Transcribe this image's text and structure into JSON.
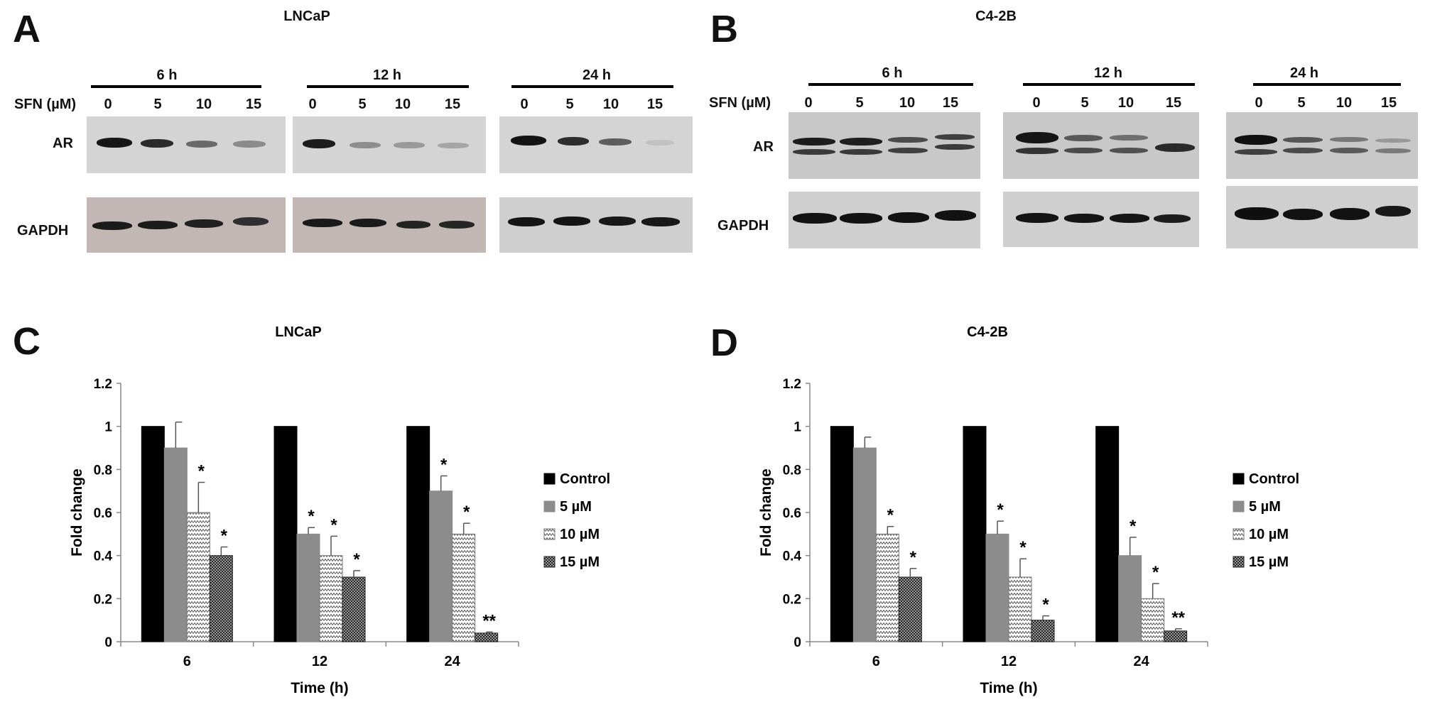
{
  "panels": {
    "A": {
      "letter": "A",
      "cell_line": "LNCaP"
    },
    "B": {
      "letter": "B",
      "cell_line": "C4-2B"
    },
    "C": {
      "letter": "C",
      "cell_line": "LNCaP"
    },
    "D": {
      "letter": "D",
      "cell_line": "C4-2B"
    }
  },
  "blots": {
    "sfn_label": "SFN (µM)",
    "time_points": [
      "6 h",
      "12 h",
      "24 h"
    ],
    "concentrations": [
      "0",
      "5",
      "10",
      "15"
    ],
    "rows": [
      "AR",
      "GAPDH"
    ]
  },
  "chart_data": [
    {
      "type": "bar",
      "title": "LNCaP",
      "xlabel": "Time (h)",
      "ylabel": "Fold change",
      "ylim": [
        0,
        1.2
      ],
      "yticks": [
        "0",
        "0.2",
        "0.4",
        "0.6",
        "0.8",
        "1",
        "1.2"
      ],
      "categories": [
        "6",
        "12",
        "24"
      ],
      "legend_position": "right",
      "series": [
        {
          "name": "Control",
          "values": [
            1,
            1,
            1
          ],
          "errors": [
            0,
            0,
            0
          ],
          "sig": [
            "",
            "",
            ""
          ]
        },
        {
          "name": "5 µM",
          "values": [
            0.9,
            0.5,
            0.7
          ],
          "errors": [
            0.12,
            0.03,
            0.07
          ],
          "sig": [
            "",
            "*",
            "*"
          ]
        },
        {
          "name": "10 µM",
          "values": [
            0.6,
            0.4,
            0.5
          ],
          "errors": [
            0.14,
            0.09,
            0.05
          ],
          "sig": [
            "*",
            "*",
            "*"
          ]
        },
        {
          "name": "15 µM",
          "values": [
            0.4,
            0.3,
            0.04
          ],
          "errors": [
            0.04,
            0.03,
            0.005
          ],
          "sig": [
            "*",
            "*",
            "**"
          ]
        }
      ]
    },
    {
      "type": "bar",
      "title": "C4-2B",
      "xlabel": "Time (h)",
      "ylabel": "Fold change",
      "ylim": [
        0,
        1.2
      ],
      "yticks": [
        "0",
        "0.2",
        "0.4",
        "0.6",
        "0.8",
        "1",
        "1.2"
      ],
      "categories": [
        "6",
        "12",
        "24"
      ],
      "legend_position": "right",
      "series": [
        {
          "name": "Control",
          "values": [
            1,
            1,
            1
          ],
          "errors": [
            0,
            0,
            0
          ],
          "sig": [
            "",
            "",
            ""
          ]
        },
        {
          "name": "5 µM",
          "values": [
            0.9,
            0.5,
            0.4
          ],
          "errors": [
            0.05,
            0.06,
            0.085
          ],
          "sig": [
            "",
            "*",
            "*"
          ]
        },
        {
          "name": "10 µM",
          "values": [
            0.5,
            0.3,
            0.2
          ],
          "errors": [
            0.035,
            0.085,
            0.07
          ],
          "sig": [
            "*",
            "*",
            "*"
          ]
        },
        {
          "name": "15 µM",
          "values": [
            0.3,
            0.1,
            0.05
          ],
          "errors": [
            0.04,
            0.02,
            0.01
          ],
          "sig": [
            "*",
            "*",
            "**"
          ]
        }
      ]
    }
  ]
}
